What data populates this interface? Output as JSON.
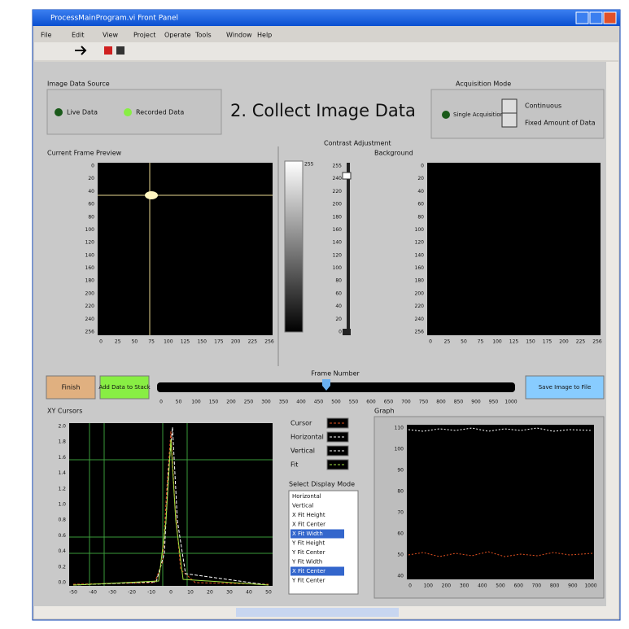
{
  "window": {
    "title": "ProcessMainProgram.vi Front Panel",
    "menu": [
      "File",
      "Edit",
      "View",
      "Project",
      "Operate",
      "Tools",
      "Window",
      "Help"
    ]
  },
  "source": {
    "label": "Image Data Source",
    "options": [
      "Live Data",
      "Recorded Data"
    ]
  },
  "heading": "2. Collect Image Data",
  "acquisition": {
    "label": "Acquisition Mode",
    "led": "Single Acquisition",
    "options": [
      "Continuous",
      "Fixed Amount of Data"
    ]
  },
  "preview": {
    "label": "Current Frame Preview",
    "yticks": [
      "0",
      "20",
      "40",
      "60",
      "80",
      "100",
      "120",
      "140",
      "160",
      "180",
      "200",
      "220",
      "240",
      "256"
    ],
    "xticks": [
      "0",
      "25",
      "50",
      "75",
      "100",
      "125",
      "150",
      "175",
      "200",
      "225",
      "256"
    ]
  },
  "contrast": {
    "label": "Contrast Adjustment",
    "scale_top": "255",
    "ticks": [
      "255",
      "240",
      "220",
      "200",
      "180",
      "160",
      "140",
      "120",
      "100",
      "80",
      "60",
      "40",
      "20",
      "0"
    ]
  },
  "background": {
    "label": "Background",
    "yticks": [
      "0",
      "20",
      "40",
      "60",
      "80",
      "100",
      "120",
      "140",
      "160",
      "180",
      "200",
      "220",
      "240",
      "256"
    ],
    "xticks": [
      "0",
      "25",
      "50",
      "75",
      "100",
      "125",
      "150",
      "175",
      "200",
      "225",
      "256"
    ]
  },
  "buttons": {
    "finish": "Finish",
    "add": "Add Data to Stack",
    "save": "Save Image to File"
  },
  "frame": {
    "label": "Frame Number",
    "ticks": [
      "0",
      "50",
      "100",
      "150",
      "200",
      "250",
      "300",
      "350",
      "400",
      "450",
      "500",
      "550",
      "600",
      "650",
      "700",
      "750",
      "800",
      "850",
      "900",
      "950",
      "1000"
    ]
  },
  "cursors": {
    "label": "XY Cursors",
    "yticks": [
      "2.0",
      "1.8",
      "1.6",
      "1.4",
      "1.2",
      "1.0",
      "0.8",
      "0.6",
      "0.4",
      "0.2",
      "0.0"
    ],
    "xticks": [
      "-50",
      "-40",
      "-30",
      "-20",
      "-10",
      "0",
      "10",
      "20",
      "30",
      "40",
      "50"
    ]
  },
  "legend": [
    "Cursor",
    "Horizontal",
    "Vertical",
    "Fit"
  ],
  "display": {
    "label": "Select Display Mode",
    "items": [
      "Horizontal",
      "Vertical",
      "X Fit Height",
      "X Fit Center",
      "X Fit Width",
      "Y Fit Height",
      "Y Fit Center",
      "Y Fit Width",
      "X Fit Center",
      "Y Fit Center"
    ]
  },
  "graph": {
    "label": "Graph",
    "yticks": [
      "110",
      "100",
      "90",
      "80",
      "70",
      "60",
      "50",
      "40"
    ],
    "xticks": [
      "0",
      "100",
      "200",
      "300",
      "400",
      "500",
      "600",
      "700",
      "800",
      "900",
      "1000"
    ]
  }
}
